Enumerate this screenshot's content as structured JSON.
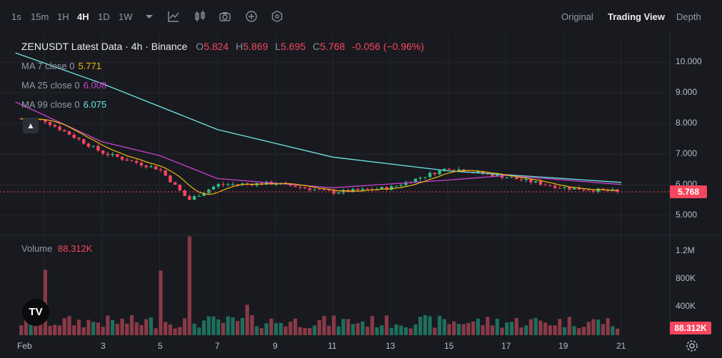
{
  "toolbar": {
    "intervals": [
      "1s",
      "15m",
      "1H",
      "4H",
      "1D",
      "1W"
    ],
    "active_interval": "4H",
    "icons": [
      "chevron-down-icon",
      "line-chart-icon",
      "candles-icon",
      "camera-icon",
      "plus-circle-icon",
      "hexagon-settings-icon"
    ],
    "views": [
      "Original",
      "Trading View",
      "Depth"
    ],
    "active_view": "Trading View"
  },
  "legend": {
    "title": "ZENUSDT Latest Data · 4h · Binance",
    "o_label": "O",
    "o": "5.824",
    "h_label": "H",
    "h": "5.869",
    "l_label": "L",
    "l": "5.695",
    "c_label": "C",
    "c": "5.768",
    "change": "-0.056 (−0.96%)",
    "ma7_label": "MA 7 close 0",
    "ma7": "5.771",
    "ma25_label": "MA 25 close 0",
    "ma25": "6.008",
    "ma99_label": "MA 99 close 0",
    "ma99": "6.075",
    "volume_label": "Volume",
    "volume": "88.312K"
  },
  "price_axis": [
    "10.000",
    "9.000",
    "8.000",
    "7.000",
    "6.000",
    "5.000"
  ],
  "volume_axis": [
    "1.2M",
    "800K",
    "400K"
  ],
  "date_axis": [
    "Feb",
    "3",
    "5",
    "7",
    "9",
    "11",
    "13",
    "15",
    "17",
    "19",
    "21"
  ],
  "last_price_tag": "5.768",
  "last_volume_tag": "88.312K",
  "logo_text": "TV",
  "colors": {
    "up": "#2ebd85",
    "down": "#f6465d",
    "ma7": "#f0b90b",
    "ma25": "#c940ce",
    "ma99": "#70e2e2",
    "up_vol": "#1f6f5c",
    "down_vol": "#8a3a47"
  },
  "chart_data": {
    "type": "candlestick",
    "x_range": [
      "Feb 1",
      "Feb 21"
    ],
    "ylim": [
      4.6,
      10.5
    ],
    "volume_ylim": [
      0,
      1300000
    ],
    "key_closes": [
      {
        "date": "Feb 1",
        "close": 8.1
      },
      {
        "date": "Feb 3",
        "close": 7.05
      },
      {
        "date": "Feb 5",
        "close": 6.5
      },
      {
        "date": "Feb 6",
        "close": 5.5
      },
      {
        "date": "Feb 7",
        "close": 6.0
      },
      {
        "date": "Feb 9",
        "close": 6.05
      },
      {
        "date": "Feb 11",
        "close": 5.75
      },
      {
        "date": "Feb 13",
        "close": 5.9
      },
      {
        "date": "Feb 15",
        "close": 6.55
      },
      {
        "date": "Feb 17",
        "close": 6.25
      },
      {
        "date": "Feb 19",
        "close": 5.9
      },
      {
        "date": "Feb 21",
        "close": 5.768
      }
    ],
    "ma99": [
      {
        "date": "Jan 31",
        "v": 10.3
      },
      {
        "date": "Feb 3",
        "v": 9.3
      },
      {
        "date": "Feb 7",
        "v": 7.8
      },
      {
        "date": "Feb 11",
        "v": 6.9
      },
      {
        "date": "Feb 15",
        "v": 6.45
      },
      {
        "date": "Feb 21",
        "v": 6.075
      }
    ],
    "ma25": [
      {
        "date": "Jan 31",
        "v": 8.7
      },
      {
        "date": "Feb 3",
        "v": 7.4
      },
      {
        "date": "Feb 5",
        "v": 6.95
      },
      {
        "date": "Feb 7",
        "v": 6.2
      },
      {
        "date": "Feb 11",
        "v": 5.9
      },
      {
        "date": "Feb 15",
        "v": 6.15
      },
      {
        "date": "Feb 17",
        "v": 6.3
      },
      {
        "date": "Feb 21",
        "v": 6.008
      }
    ],
    "volume_peaks": [
      {
        "date": "Feb 1",
        "volume": 880000
      },
      {
        "date": "Feb 5",
        "volume": 870000
      },
      {
        "date": "Feb 6",
        "volume": 1330000
      },
      {
        "date": "Feb 8",
        "volume": 410000
      }
    ],
    "last_volume": 88312
  }
}
